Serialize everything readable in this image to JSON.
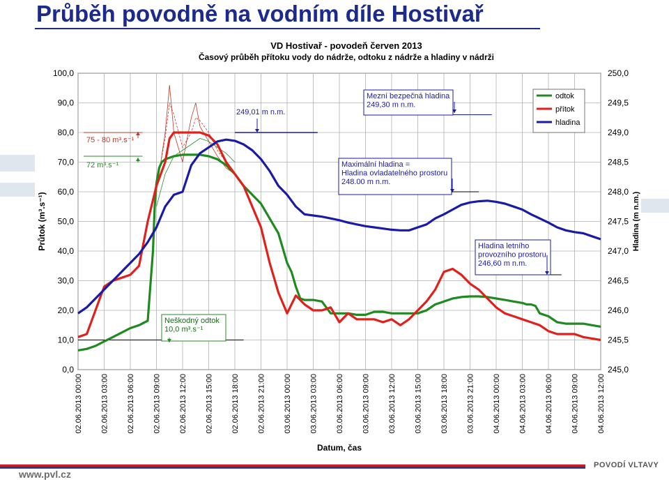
{
  "slide": {
    "title": "Průběh povodně na vodním díle Hostivař",
    "footer_url": "www.pvl.cz",
    "footer_logo": "POVODÍ VLTAVY"
  },
  "colors": {
    "odtok": "#1f8a1f",
    "pritok": "#e0201b",
    "hladina": "#1a1aa8",
    "title": "#1b2a8c"
  },
  "chart_data": {
    "type": "line",
    "title": "VD Hostivař - povodeň červen 2013",
    "subtitle": "Časový průběh přítoku vody do nádrže, odtoku z nádrže a hladiny v nádrži",
    "xlabel": "Datum, čas",
    "ylabel": "Průtok (m³.s⁻¹)",
    "y2label": "Hladina (m n.m.)",
    "ylim": [
      0,
      100
    ],
    "y2lim": [
      245.0,
      250.0
    ],
    "yticks": [
      "0,0",
      "10,0",
      "20,0",
      "30,0",
      "40,0",
      "50,0",
      "60,0",
      "70,0",
      "80,0",
      "90,0",
      "100,0"
    ],
    "y2ticks": [
      "245,0",
      "245,5",
      "246,0",
      "246,5",
      "247,0",
      "247,5",
      "248,0",
      "248,5",
      "249,0",
      "249,5",
      "250,0"
    ],
    "xticks": [
      "02.06.2013 00:00",
      "02.06.2013 03:00",
      "02.06.2013 06:00",
      "02.06.2013 09:00",
      "02.06.2013 12:00",
      "02.06.2013 15:00",
      "02.06.2013 18:00",
      "02.06.2013 21:00",
      "03.06.2013 00:00",
      "03.06.2013 03:00",
      "03.06.2013 06:00",
      "03.06.2013 09:00",
      "03.06.2013 12:00",
      "03.06.2013 15:00",
      "03.06.2013 18:00",
      "03.06.2013 21:00",
      "04.06.2013 00:00",
      "04.06.2013 03:00",
      "04.06.2013 06:00",
      "04.06.2013 09:00",
      "04.06.2013 12:00"
    ],
    "grid": true,
    "legend_position": "top-right",
    "x_unit": "hours from 02.06.2013 00:00",
    "series": [
      {
        "name": "odtok",
        "axis": "left",
        "x": [
          0,
          1,
          2,
          3,
          4,
          5,
          6,
          7,
          8,
          8.6,
          8.8,
          9,
          9.3,
          9.6,
          10,
          11,
          12,
          13,
          14,
          15,
          16,
          17,
          18,
          19,
          20,
          21,
          22,
          23,
          24,
          24.5,
          25,
          25.5,
          26,
          27,
          28,
          29,
          30,
          31,
          32,
          33,
          34,
          35,
          36,
          37,
          38,
          39,
          40,
          41,
          42,
          43,
          44,
          45,
          46,
          47,
          48,
          49,
          50,
          51,
          51.5,
          52,
          52.5,
          53,
          54,
          55,
          56,
          57,
          58,
          59,
          60
        ],
        "values": [
          6.5,
          7,
          8,
          9.5,
          11,
          12.5,
          14,
          15,
          16.5,
          40,
          55,
          63,
          68,
          70,
          71,
          72,
          72.5,
          72.5,
          72.5,
          72,
          71,
          69,
          66,
          62,
          59,
          56,
          51,
          46,
          36,
          33,
          28,
          24,
          23.5,
          23.5,
          23,
          19,
          19,
          19,
          18.5,
          18.5,
          19.5,
          19.5,
          19,
          19,
          19,
          19,
          20,
          22,
          23,
          24,
          24.5,
          24.7,
          24.7,
          24.5,
          24,
          23.5,
          23,
          22.5,
          22,
          22,
          21.5,
          19,
          18,
          16,
          15.5,
          15.5,
          15.5,
          15,
          14.5
        ]
      },
      {
        "name": "přítok",
        "axis": "left",
        "x": [
          0,
          1,
          2,
          3,
          4,
          5,
          6,
          7,
          8,
          9,
          10,
          10.5,
          11,
          12,
          13,
          14,
          15,
          16,
          17,
          18,
          19,
          20,
          21,
          22,
          23,
          24,
          25,
          26,
          27,
          28,
          29,
          30,
          31,
          32,
          33,
          34,
          35,
          36,
          37,
          38,
          39,
          40,
          41,
          42,
          43,
          44,
          45,
          46,
          47,
          48,
          49,
          50,
          51,
          52,
          53,
          54,
          55,
          56,
          57,
          58,
          59,
          60
        ],
        "values": [
          11,
          12,
          20,
          28,
          30,
          31,
          32,
          35,
          50,
          62,
          70,
          78,
          80,
          80,
          80,
          80,
          79,
          76,
          70,
          66,
          62,
          55,
          48,
          36,
          26,
          19,
          25,
          22,
          20,
          20,
          21,
          16,
          19,
          17,
          17,
          17,
          16,
          17,
          15,
          17,
          20,
          23,
          27,
          33,
          34,
          32,
          29,
          27,
          24,
          21,
          19,
          18,
          17,
          16,
          15,
          13,
          12,
          12,
          12,
          11,
          10.5,
          10
        ]
      },
      {
        "name": "hladina",
        "axis": "right",
        "x": [
          0,
          1,
          2,
          3,
          4,
          5,
          6,
          7,
          8,
          9,
          10,
          11,
          12,
          13,
          14,
          15,
          16,
          17,
          18,
          19,
          20,
          21,
          22,
          23,
          24,
          25,
          26,
          27,
          28,
          29,
          30,
          31,
          32,
          33,
          34,
          35,
          36,
          37,
          38,
          39,
          40,
          41,
          42,
          43,
          44,
          45,
          46,
          47,
          48,
          49,
          50,
          51,
          52,
          53,
          54,
          55,
          56,
          57,
          58,
          59,
          60
        ],
        "values": [
          245.95,
          246.05,
          246.2,
          246.35,
          246.5,
          246.65,
          246.8,
          246.95,
          247.15,
          247.4,
          247.75,
          247.95,
          248.0,
          248.45,
          248.65,
          248.75,
          248.85,
          248.88,
          248.86,
          248.8,
          248.7,
          248.55,
          248.35,
          248.1,
          247.95,
          247.75,
          247.62,
          247.6,
          247.58,
          247.55,
          247.52,
          247.48,
          247.45,
          247.42,
          247.4,
          247.38,
          247.36,
          247.35,
          247.35,
          247.4,
          247.45,
          247.55,
          247.62,
          247.7,
          247.78,
          247.82,
          247.84,
          247.85,
          247.83,
          247.8,
          247.75,
          247.7,
          247.62,
          247.55,
          247.48,
          247.4,
          247.35,
          247.32,
          247.3,
          247.25,
          247.2
        ]
      }
    ],
    "envelope_lines": [
      {
        "name": "přítok odhad 1",
        "x": [
          9,
          10,
          10.5,
          11,
          12,
          13,
          13.5,
          14,
          15,
          16,
          17,
          18
        ],
        "values": [
          60,
          80,
          96,
          80,
          70,
          85,
          90,
          82,
          77,
          72,
          68,
          66
        ]
      },
      {
        "name": "přítok odhad 2",
        "x": [
          9,
          10,
          10.5,
          11,
          12,
          13,
          13.5,
          14,
          15,
          16,
          17
        ],
        "values": [
          62,
          78,
          90,
          86,
          75,
          80,
          85,
          84,
          80,
          74,
          70
        ]
      },
      {
        "name": "odtok odhad",
        "x": [
          9,
          10,
          11,
          12,
          13,
          14,
          15,
          16,
          17,
          18
        ],
        "values": [
          55,
          66,
          72,
          74,
          76,
          78,
          77,
          75,
          73,
          70
        ]
      }
    ],
    "annotations": [
      {
        "name": "mezni-hladina",
        "lines": [
          "Mezní bezpečná hladina",
          "249,30 m n.m."
        ]
      },
      {
        "name": "max-hladina",
        "lines": [
          "Maximální hladina      =",
          "Hladina ovladatelného prostoru",
          "248.00 m n.m."
        ]
      },
      {
        "name": "hladina-letni",
        "lines": [
          "Hladina letního",
          "provozního prostoru",
          "246,60 m n.m."
        ]
      },
      {
        "name": "peak-hladina",
        "lines": [
          "249,01 m n.m."
        ]
      },
      {
        "name": "neskodny-odtok",
        "lines": [
          "Neškodný odtok",
          "10,0 m³.s⁻¹"
        ]
      },
      {
        "name": "pritok-peak",
        "lines": [
          "75 - 80 m³.s⁻¹"
        ]
      },
      {
        "name": "odtok-peak",
        "lines": [
          "72 m³.s⁻¹"
        ]
      }
    ]
  }
}
